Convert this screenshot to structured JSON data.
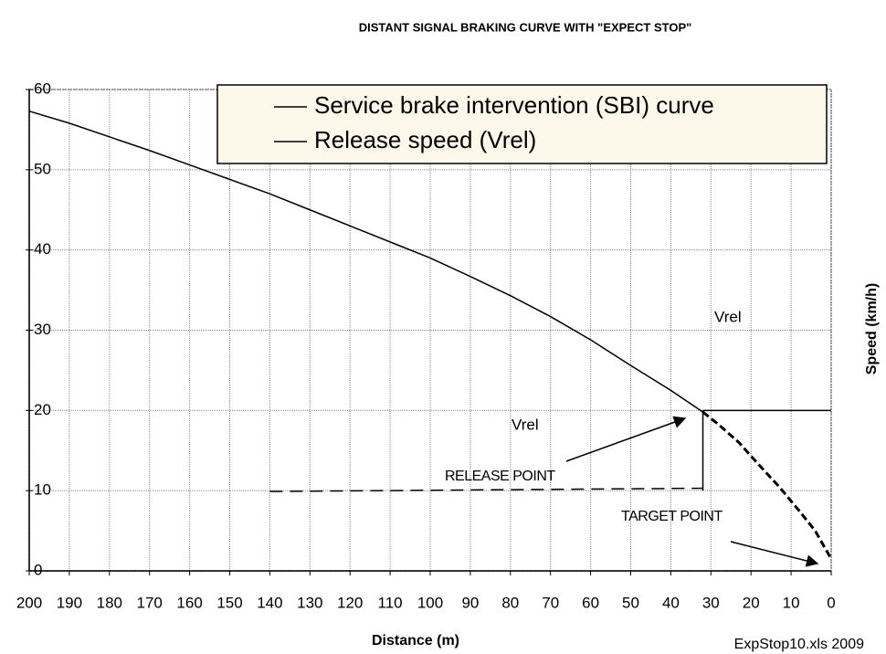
{
  "chart_data": {
    "type": "line",
    "title": "DISTANT SIGNAL BRAKING CURVE WITH \"EXPECT STOP\"",
    "x_label": "Distance (m)",
    "y_label": "Speed (km/h)",
    "footnote": "ExpStop10.xls 2009",
    "annotations": [
      "Vrel",
      "Vrel",
      "RELEASE POINT",
      "TARGET POINT"
    ],
    "xlim": [
      200,
      0
    ],
    "xticks": [
      200,
      190,
      180,
      170,
      160,
      150,
      140,
      130,
      120,
      110,
      100,
      90,
      80,
      70,
      60,
      50,
      40,
      30,
      20,
      10,
      0
    ],
    "ylim": [
      0,
      60
    ],
    "yticks": [
      0,
      10,
      20,
      30,
      40,
      50,
      60
    ],
    "grid": true,
    "legend": "top-right",
    "series": [
      {
        "name": "Service brake intervention (SBI) curve",
        "color": "#000000",
        "x": [
          200,
          190,
          180,
          170,
          160,
          150,
          140,
          130,
          120,
          110,
          100,
          90,
          80,
          70,
          60,
          50,
          40,
          32
        ],
        "values": [
          57.3,
          55.8,
          54.1,
          52.4,
          50.6,
          48.8,
          47,
          45,
          43,
          41,
          39,
          36.7,
          34.3,
          31.7,
          28.8,
          25.6,
          22.5,
          19.8
        ]
      },
      {
        "name": "Release speed (Vrel)",
        "color": "#000000",
        "x": [
          32,
          0
        ],
        "values": [
          20,
          20
        ]
      },
      {
        "color": "#000000",
        "dashed": true,
        "bold": true,
        "x": [
          32,
          28,
          23,
          18,
          13,
          8,
          4,
          0
        ],
        "values": [
          19.8,
          18.2,
          16,
          13.2,
          10.5,
          7.5,
          5,
          1.5
        ]
      },
      {
        "color": "#000000",
        "x": [
          32,
          32
        ],
        "values": [
          20,
          10
        ]
      },
      {
        "color": "#000000",
        "dashed": true,
        "x": [
          140,
          32
        ],
        "values": [
          9.9,
          10.3
        ]
      }
    ]
  }
}
